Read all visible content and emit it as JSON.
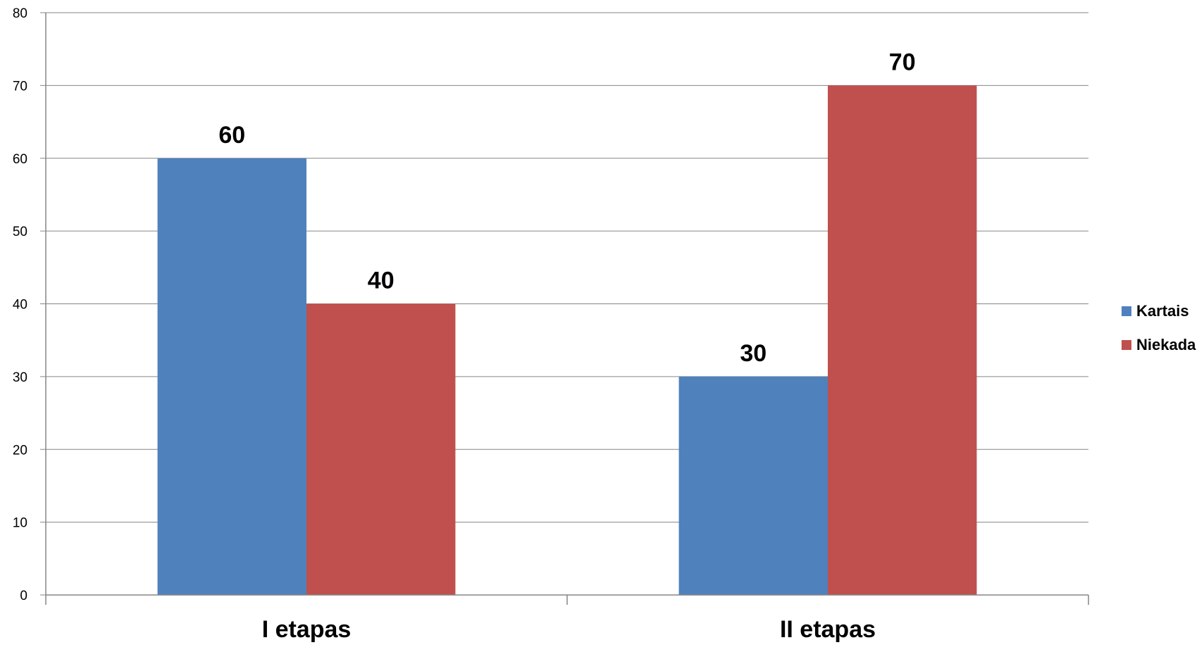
{
  "chart_data": {
    "type": "bar",
    "categories": [
      "I etapas",
      "II etapas"
    ],
    "series": [
      {
        "name": "Kartais",
        "values": [
          60,
          30
        ],
        "color": "#4F81BD"
      },
      {
        "name": "Niekada",
        "values": [
          40,
          70
        ],
        "color": "#C0504D"
      }
    ],
    "yticks": [
      "0",
      "10",
      "20",
      "30",
      "40",
      "50",
      "60",
      "70",
      "80"
    ],
    "ylim": [
      0,
      80
    ],
    "grid": true,
    "legend": "right",
    "data_labels": true,
    "title": "",
    "xlabel": "",
    "ylabel": ""
  }
}
